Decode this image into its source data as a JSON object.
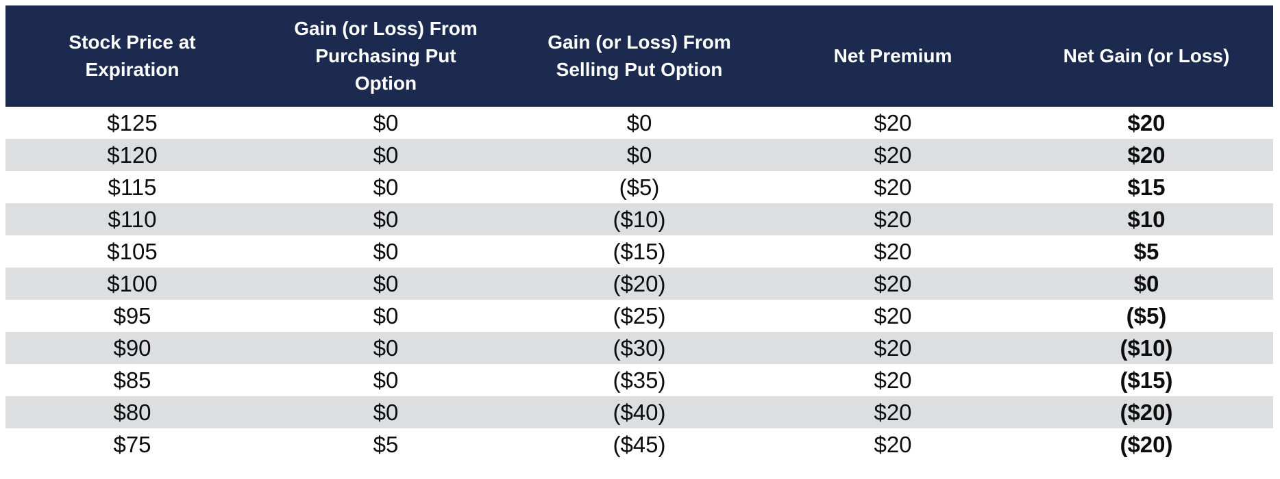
{
  "colors": {
    "header_bg": "#1b2a4e",
    "header_text": "#ffffff",
    "stripe_bg": "#dcdee0",
    "body_text": "#0d0d0d"
  },
  "table": {
    "header_display": [
      "Stock Price at\nExpiration",
      "Gain (or Loss) From\nPurchasing Put\nOption",
      "Gain (or Loss) From\nSelling Put Option",
      "Net Premium",
      "Net Gain (or Loss)"
    ]
  },
  "chart_data": {
    "type": "table",
    "columns": [
      "Stock Price at Expiration",
      "Gain (or Loss) From Purchasing Put Option",
      "Gain (or Loss) From Selling Put Option",
      "Net Premium",
      "Net Gain (or Loss)"
    ],
    "rows": [
      [
        "$125",
        "$0",
        "$0",
        "$20",
        "$20"
      ],
      [
        "$120",
        "$0",
        "$0",
        "$20",
        "$20"
      ],
      [
        "$115",
        "$0",
        "($5)",
        "$20",
        "$15"
      ],
      [
        "$110",
        "$0",
        "($10)",
        "$20",
        "$10"
      ],
      [
        "$105",
        "$0",
        "($15)",
        "$20",
        "$5"
      ],
      [
        "$100",
        "$0",
        "($20)",
        "$20",
        "$0"
      ],
      [
        "$95",
        "$0",
        "($25)",
        "$20",
        "($5)"
      ],
      [
        "$90",
        "$0",
        "($30)",
        "$20",
        "($10)"
      ],
      [
        "$85",
        "$0",
        "($35)",
        "$20",
        "($15)"
      ],
      [
        "$80",
        "$0",
        "($40)",
        "$20",
        "($20)"
      ],
      [
        "$75",
        "$5",
        "($45)",
        "$20",
        "($20)"
      ]
    ]
  }
}
